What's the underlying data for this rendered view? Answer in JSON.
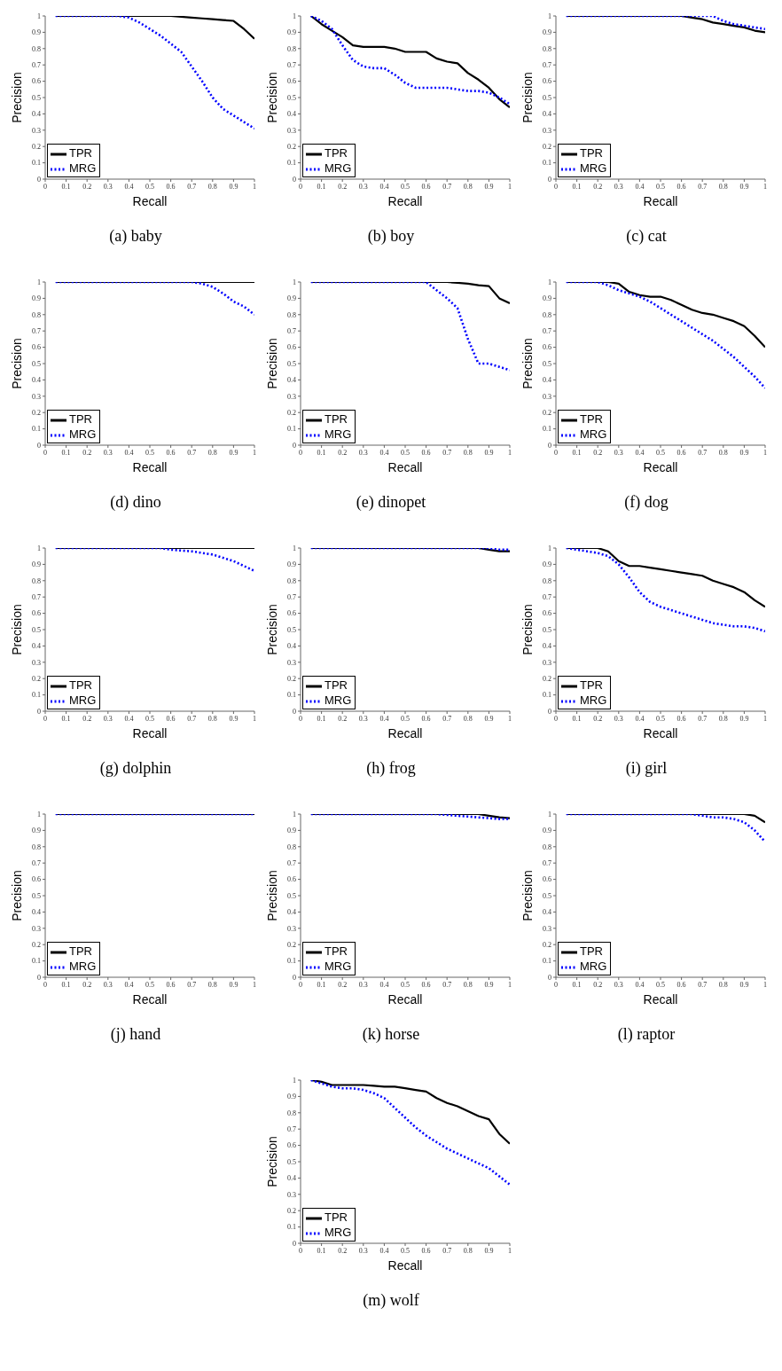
{
  "chart_data": [
    {
      "type": "line",
      "title": "(a) baby",
      "xlabel": "Recall",
      "ylabel": "Precision",
      "xlim": [
        0,
        1
      ],
      "ylim": [
        0,
        1
      ],
      "xticks": [
        0,
        0.1,
        0.2,
        0.3,
        0.4,
        0.5,
        0.6,
        0.7,
        0.8,
        0.9,
        1
      ],
      "yticks": [
        0,
        0.1,
        0.2,
        0.3,
        0.4,
        0.5,
        0.6,
        0.7,
        0.8,
        0.9,
        1
      ],
      "legend": "bottom left",
      "x": [
        0.05,
        0.1,
        0.15,
        0.2,
        0.25,
        0.3,
        0.35,
        0.4,
        0.45,
        0.5,
        0.55,
        0.6,
        0.65,
        0.7,
        0.75,
        0.8,
        0.85,
        0.9,
        0.95,
        1
      ],
      "series": [
        {
          "name": "TPR",
          "color": "#000000",
          "line_style": "solid",
          "values": [
            1,
            1,
            1,
            1,
            1,
            1,
            1,
            1,
            1,
            1,
            1,
            1,
            0.995,
            0.99,
            0.985,
            0.98,
            0.975,
            0.97,
            0.92,
            0.86
          ]
        },
        {
          "name": "MRG",
          "color": "#0000ff",
          "line_style": "dotted",
          "values": [
            1,
            1,
            1,
            1,
            1,
            1,
            1,
            0.99,
            0.96,
            0.92,
            0.88,
            0.83,
            0.78,
            0.69,
            0.6,
            0.5,
            0.43,
            0.39,
            0.35,
            0.31
          ]
        }
      ]
    },
    {
      "type": "line",
      "title": "(b) boy",
      "xlabel": "Recall",
      "ylabel": "Precision",
      "xlim": [
        0,
        1
      ],
      "ylim": [
        0,
        1
      ],
      "xticks": [
        0,
        0.1,
        0.2,
        0.3,
        0.4,
        0.5,
        0.6,
        0.7,
        0.8,
        0.9,
        1
      ],
      "yticks": [
        0,
        0.1,
        0.2,
        0.3,
        0.4,
        0.5,
        0.6,
        0.7,
        0.8,
        0.9,
        1
      ],
      "legend": "bottom left",
      "x": [
        0.05,
        0.1,
        0.15,
        0.2,
        0.25,
        0.3,
        0.35,
        0.4,
        0.45,
        0.5,
        0.55,
        0.6,
        0.65,
        0.7,
        0.75,
        0.8,
        0.85,
        0.9,
        0.95,
        1
      ],
      "series": [
        {
          "name": "TPR",
          "color": "#000000",
          "line_style": "solid",
          "values": [
            1,
            0.95,
            0.91,
            0.87,
            0.82,
            0.81,
            0.81,
            0.81,
            0.8,
            0.78,
            0.78,
            0.78,
            0.74,
            0.72,
            0.71,
            0.65,
            0.61,
            0.56,
            0.49,
            0.44
          ]
        },
        {
          "name": "MRG",
          "color": "#0000ff",
          "line_style": "dotted",
          "values": [
            1,
            0.97,
            0.92,
            0.82,
            0.73,
            0.69,
            0.68,
            0.68,
            0.64,
            0.59,
            0.56,
            0.56,
            0.56,
            0.56,
            0.55,
            0.54,
            0.54,
            0.53,
            0.5,
            0.46
          ]
        }
      ]
    },
    {
      "type": "line",
      "title": "(c) cat",
      "xlabel": "Recall",
      "ylabel": "Precision",
      "xlim": [
        0,
        1
      ],
      "ylim": [
        0,
        1
      ],
      "xticks": [
        0,
        0.1,
        0.2,
        0.3,
        0.4,
        0.5,
        0.6,
        0.7,
        0.8,
        0.9,
        1
      ],
      "yticks": [
        0,
        0.1,
        0.2,
        0.3,
        0.4,
        0.5,
        0.6,
        0.7,
        0.8,
        0.9,
        1
      ],
      "legend": "bottom left",
      "x": [
        0.05,
        0.1,
        0.15,
        0.2,
        0.25,
        0.3,
        0.35,
        0.4,
        0.45,
        0.5,
        0.55,
        0.6,
        0.65,
        0.7,
        0.75,
        0.8,
        0.85,
        0.9,
        0.95,
        1
      ],
      "series": [
        {
          "name": "TPR",
          "color": "#000000",
          "line_style": "solid",
          "values": [
            1,
            1,
            1,
            1,
            1,
            1,
            1,
            1,
            1,
            1,
            1,
            1,
            0.99,
            0.98,
            0.96,
            0.95,
            0.94,
            0.93,
            0.91,
            0.9
          ]
        },
        {
          "name": "MRG",
          "color": "#0000ff",
          "line_style": "dotted",
          "values": [
            1,
            1,
            1,
            1,
            1,
            1,
            1,
            1,
            1,
            1,
            1,
            1,
            1,
            1,
            1,
            0.97,
            0.95,
            0.94,
            0.93,
            0.92
          ]
        }
      ]
    },
    {
      "type": "line",
      "title": "(d) dino",
      "xlabel": "Recall",
      "ylabel": "Precision",
      "xlim": [
        0,
        1
      ],
      "ylim": [
        0,
        1
      ],
      "xticks": [
        0,
        0.1,
        0.2,
        0.3,
        0.4,
        0.5,
        0.6,
        0.7,
        0.8,
        0.9,
        1
      ],
      "yticks": [
        0,
        0.1,
        0.2,
        0.3,
        0.4,
        0.5,
        0.6,
        0.7,
        0.8,
        0.9,
        1
      ],
      "legend": "bottom left",
      "x": [
        0.05,
        0.1,
        0.15,
        0.2,
        0.25,
        0.3,
        0.35,
        0.4,
        0.45,
        0.5,
        0.55,
        0.6,
        0.65,
        0.7,
        0.75,
        0.8,
        0.85,
        0.9,
        0.95,
        1
      ],
      "series": [
        {
          "name": "TPR",
          "color": "#000000",
          "line_style": "solid",
          "values": [
            1,
            1,
            1,
            1,
            1,
            1,
            1,
            1,
            1,
            1,
            1,
            1,
            1,
            1,
            1,
            1,
            1,
            1,
            1,
            1
          ]
        },
        {
          "name": "MRG",
          "color": "#0000ff",
          "line_style": "dotted",
          "values": [
            1,
            1,
            1,
            1,
            1,
            1,
            1,
            1,
            1,
            1,
            1,
            1,
            1,
            1,
            0.99,
            0.97,
            0.93,
            0.88,
            0.85,
            0.8
          ]
        }
      ]
    },
    {
      "type": "line",
      "title": "(e) dinopet",
      "xlabel": "Recall",
      "ylabel": "Precision",
      "xlim": [
        0,
        1
      ],
      "ylim": [
        0,
        1
      ],
      "xticks": [
        0,
        0.1,
        0.2,
        0.3,
        0.4,
        0.5,
        0.6,
        0.7,
        0.8,
        0.9,
        1
      ],
      "yticks": [
        0,
        0.1,
        0.2,
        0.3,
        0.4,
        0.5,
        0.6,
        0.7,
        0.8,
        0.9,
        1
      ],
      "legend": "bottom left",
      "x": [
        0.05,
        0.1,
        0.15,
        0.2,
        0.25,
        0.3,
        0.35,
        0.4,
        0.45,
        0.5,
        0.55,
        0.6,
        0.65,
        0.7,
        0.75,
        0.8,
        0.85,
        0.9,
        0.95,
        1
      ],
      "series": [
        {
          "name": "TPR",
          "color": "#000000",
          "line_style": "solid",
          "values": [
            1,
            1,
            1,
            1,
            1,
            1,
            1,
            1,
            1,
            1,
            1,
            1,
            1,
            1,
            0.995,
            0.99,
            0.98,
            0.975,
            0.9,
            0.87
          ]
        },
        {
          "name": "MRG",
          "color": "#0000ff",
          "line_style": "dotted",
          "values": [
            1,
            1,
            1,
            1,
            1,
            1,
            1,
            1,
            1,
            1,
            1,
            1,
            0.95,
            0.9,
            0.84,
            0.65,
            0.5,
            0.5,
            0.48,
            0.46
          ]
        }
      ]
    },
    {
      "type": "line",
      "title": "(f) dog",
      "xlabel": "Recall",
      "ylabel": "Precision",
      "xlim": [
        0,
        1
      ],
      "ylim": [
        0,
        1
      ],
      "xticks": [
        0,
        0.1,
        0.2,
        0.3,
        0.4,
        0.5,
        0.6,
        0.7,
        0.8,
        0.9,
        1
      ],
      "yticks": [
        0,
        0.1,
        0.2,
        0.3,
        0.4,
        0.5,
        0.6,
        0.7,
        0.8,
        0.9,
        1
      ],
      "legend": "bottom left",
      "x": [
        0.05,
        0.1,
        0.15,
        0.2,
        0.25,
        0.3,
        0.35,
        0.4,
        0.45,
        0.5,
        0.55,
        0.6,
        0.65,
        0.7,
        0.75,
        0.8,
        0.85,
        0.9,
        0.95,
        1
      ],
      "series": [
        {
          "name": "TPR",
          "color": "#000000",
          "line_style": "solid",
          "values": [
            1,
            1,
            1,
            1,
            1,
            0.99,
            0.94,
            0.92,
            0.91,
            0.91,
            0.89,
            0.86,
            0.83,
            0.81,
            0.8,
            0.78,
            0.76,
            0.73,
            0.67,
            0.6
          ]
        },
        {
          "name": "MRG",
          "color": "#0000ff",
          "line_style": "dotted",
          "values": [
            1,
            1,
            1,
            1,
            0.98,
            0.95,
            0.93,
            0.91,
            0.88,
            0.84,
            0.8,
            0.76,
            0.72,
            0.68,
            0.64,
            0.59,
            0.54,
            0.48,
            0.42,
            0.35
          ]
        }
      ]
    },
    {
      "type": "line",
      "title": "(g) dolphin",
      "xlabel": "Recall",
      "ylabel": "Precision",
      "xlim": [
        0,
        1
      ],
      "ylim": [
        0,
        1
      ],
      "xticks": [
        0,
        0.1,
        0.2,
        0.3,
        0.4,
        0.5,
        0.6,
        0.7,
        0.8,
        0.9,
        1
      ],
      "yticks": [
        0,
        0.1,
        0.2,
        0.3,
        0.4,
        0.5,
        0.6,
        0.7,
        0.8,
        0.9,
        1
      ],
      "legend": "bottom left",
      "x": [
        0.05,
        0.1,
        0.15,
        0.2,
        0.25,
        0.3,
        0.35,
        0.4,
        0.45,
        0.5,
        0.55,
        0.6,
        0.65,
        0.7,
        0.75,
        0.8,
        0.85,
        0.9,
        0.95,
        1
      ],
      "series": [
        {
          "name": "TPR",
          "color": "#000000",
          "line_style": "solid",
          "values": [
            1,
            1,
            1,
            1,
            1,
            1,
            1,
            1,
            1,
            1,
            1,
            1,
            1,
            1,
            1,
            1,
            1,
            1,
            1,
            1
          ]
        },
        {
          "name": "MRG",
          "color": "#0000ff",
          "line_style": "dotted",
          "values": [
            1,
            1,
            1,
            1,
            1,
            1,
            1,
            1,
            1,
            1,
            1,
            0.99,
            0.985,
            0.98,
            0.97,
            0.96,
            0.94,
            0.92,
            0.89,
            0.86
          ]
        }
      ]
    },
    {
      "type": "line",
      "title": "(h) frog",
      "xlabel": "Recall",
      "ylabel": "Precision",
      "xlim": [
        0,
        1
      ],
      "ylim": [
        0,
        1
      ],
      "xticks": [
        0,
        0.1,
        0.2,
        0.3,
        0.4,
        0.5,
        0.6,
        0.7,
        0.8,
        0.9,
        1
      ],
      "yticks": [
        0,
        0.1,
        0.2,
        0.3,
        0.4,
        0.5,
        0.6,
        0.7,
        0.8,
        0.9,
        1
      ],
      "legend": "bottom left",
      "x": [
        0.05,
        0.1,
        0.15,
        0.2,
        0.25,
        0.3,
        0.35,
        0.4,
        0.45,
        0.5,
        0.55,
        0.6,
        0.65,
        0.7,
        0.75,
        0.8,
        0.85,
        0.9,
        0.95,
        1
      ],
      "series": [
        {
          "name": "TPR",
          "color": "#000000",
          "line_style": "solid",
          "values": [
            1,
            1,
            1,
            1,
            1,
            1,
            1,
            1,
            1,
            1,
            1,
            1,
            1,
            1,
            1,
            1,
            1,
            0.99,
            0.98,
            0.98
          ]
        },
        {
          "name": "MRG",
          "color": "#0000ff",
          "line_style": "dotted",
          "values": [
            1,
            1,
            1,
            1,
            1,
            1,
            1,
            1,
            1,
            1,
            1,
            1,
            1,
            1,
            1,
            1,
            1,
            1,
            0.99,
            0.99
          ]
        }
      ]
    },
    {
      "type": "line",
      "title": "(i) girl",
      "xlabel": "Recall",
      "ylabel": "Precision",
      "xlim": [
        0,
        1
      ],
      "ylim": [
        0,
        1
      ],
      "xticks": [
        0,
        0.1,
        0.2,
        0.3,
        0.4,
        0.5,
        0.6,
        0.7,
        0.8,
        0.9,
        1
      ],
      "yticks": [
        0,
        0.1,
        0.2,
        0.3,
        0.4,
        0.5,
        0.6,
        0.7,
        0.8,
        0.9,
        1
      ],
      "legend": "bottom left",
      "x": [
        0.05,
        0.1,
        0.15,
        0.2,
        0.25,
        0.3,
        0.35,
        0.4,
        0.45,
        0.5,
        0.55,
        0.6,
        0.65,
        0.7,
        0.75,
        0.8,
        0.85,
        0.9,
        0.95,
        1
      ],
      "series": [
        {
          "name": "TPR",
          "color": "#000000",
          "line_style": "solid",
          "values": [
            1,
            1,
            1,
            1,
            0.98,
            0.92,
            0.89,
            0.89,
            0.88,
            0.87,
            0.86,
            0.85,
            0.84,
            0.83,
            0.8,
            0.78,
            0.76,
            0.73,
            0.68,
            0.64
          ]
        },
        {
          "name": "MRG",
          "color": "#0000ff",
          "line_style": "dotted",
          "values": [
            1,
            0.99,
            0.98,
            0.97,
            0.95,
            0.9,
            0.82,
            0.73,
            0.67,
            0.64,
            0.62,
            0.6,
            0.58,
            0.56,
            0.54,
            0.53,
            0.52,
            0.52,
            0.51,
            0.49
          ]
        }
      ]
    },
    {
      "type": "line",
      "title": "(j) hand",
      "xlabel": "Recall",
      "ylabel": "Precision",
      "xlim": [
        0,
        1
      ],
      "ylim": [
        0,
        1
      ],
      "xticks": [
        0,
        0.1,
        0.2,
        0.3,
        0.4,
        0.5,
        0.6,
        0.7,
        0.8,
        0.9,
        1
      ],
      "yticks": [
        0,
        0.1,
        0.2,
        0.3,
        0.4,
        0.5,
        0.6,
        0.7,
        0.8,
        0.9,
        1
      ],
      "legend": "bottom left",
      "x": [
        0.05,
        0.1,
        0.15,
        0.2,
        0.25,
        0.3,
        0.35,
        0.4,
        0.45,
        0.5,
        0.55,
        0.6,
        0.65,
        0.7,
        0.75,
        0.8,
        0.85,
        0.9,
        0.95,
        1
      ],
      "series": [
        {
          "name": "TPR",
          "color": "#000000",
          "line_style": "solid",
          "values": [
            1,
            1,
            1,
            1,
            1,
            1,
            1,
            1,
            1,
            1,
            1,
            1,
            1,
            1,
            1,
            1,
            1,
            1,
            1,
            1
          ]
        },
        {
          "name": "MRG",
          "color": "#0000ff",
          "line_style": "dotted",
          "values": [
            1,
            1,
            1,
            1,
            1,
            1,
            1,
            1,
            1,
            1,
            1,
            1,
            1,
            1,
            1,
            1,
            1,
            1,
            1,
            1
          ]
        }
      ]
    },
    {
      "type": "line",
      "title": "(k) horse",
      "xlabel": "Recall",
      "ylabel": "Precision",
      "xlim": [
        0,
        1
      ],
      "ylim": [
        0,
        1
      ],
      "xticks": [
        0,
        0.1,
        0.2,
        0.3,
        0.4,
        0.5,
        0.6,
        0.7,
        0.8,
        0.9,
        1
      ],
      "yticks": [
        0,
        0.1,
        0.2,
        0.3,
        0.4,
        0.5,
        0.6,
        0.7,
        0.8,
        0.9,
        1
      ],
      "legend": "bottom left",
      "x": [
        0.05,
        0.1,
        0.15,
        0.2,
        0.25,
        0.3,
        0.35,
        0.4,
        0.45,
        0.5,
        0.55,
        0.6,
        0.65,
        0.7,
        0.75,
        0.8,
        0.85,
        0.9,
        0.95,
        1
      ],
      "series": [
        {
          "name": "TPR",
          "color": "#000000",
          "line_style": "solid",
          "values": [
            1,
            1,
            1,
            1,
            1,
            1,
            1,
            1,
            1,
            1,
            1,
            1,
            1,
            1,
            1,
            1,
            1,
            0.99,
            0.98,
            0.975
          ]
        },
        {
          "name": "MRG",
          "color": "#0000ff",
          "line_style": "dotted",
          "values": [
            1,
            1,
            1,
            1,
            1,
            1,
            1,
            1,
            1,
            1,
            1,
            1,
            1,
            0.995,
            0.99,
            0.985,
            0.98,
            0.975,
            0.97,
            0.97
          ]
        }
      ]
    },
    {
      "type": "line",
      "title": "(l) raptor",
      "xlabel": "Recall",
      "ylabel": "Precision",
      "xlim": [
        0,
        1
      ],
      "ylim": [
        0,
        1
      ],
      "xticks": [
        0,
        0.1,
        0.2,
        0.3,
        0.4,
        0.5,
        0.6,
        0.7,
        0.8,
        0.9,
        1
      ],
      "yticks": [
        0,
        0.1,
        0.2,
        0.3,
        0.4,
        0.5,
        0.6,
        0.7,
        0.8,
        0.9,
        1
      ],
      "legend": "bottom left",
      "x": [
        0.05,
        0.1,
        0.15,
        0.2,
        0.25,
        0.3,
        0.35,
        0.4,
        0.45,
        0.5,
        0.55,
        0.6,
        0.65,
        0.7,
        0.75,
        0.8,
        0.85,
        0.9,
        0.95,
        1
      ],
      "series": [
        {
          "name": "TPR",
          "color": "#000000",
          "line_style": "solid",
          "values": [
            1,
            1,
            1,
            1,
            1,
            1,
            1,
            1,
            1,
            1,
            1,
            1,
            1,
            1,
            1,
            1,
            1,
            1,
            0.99,
            0.95
          ]
        },
        {
          "name": "MRG",
          "color": "#0000ff",
          "line_style": "dotted",
          "values": [
            1,
            1,
            1,
            1,
            1,
            1,
            1,
            1,
            1,
            1,
            1,
            1,
            1,
            0.99,
            0.98,
            0.98,
            0.97,
            0.95,
            0.9,
            0.83
          ]
        }
      ]
    },
    {
      "type": "line",
      "title": "(m) wolf",
      "xlabel": "Recall",
      "ylabel": "Precision",
      "xlim": [
        0,
        1
      ],
      "ylim": [
        0,
        1
      ],
      "xticks": [
        0,
        0.1,
        0.2,
        0.3,
        0.4,
        0.5,
        0.6,
        0.7,
        0.8,
        0.9,
        1
      ],
      "yticks": [
        0,
        0.1,
        0.2,
        0.3,
        0.4,
        0.5,
        0.6,
        0.7,
        0.8,
        0.9,
        1
      ],
      "legend": "bottom left",
      "x": [
        0.05,
        0.1,
        0.15,
        0.2,
        0.25,
        0.3,
        0.35,
        0.4,
        0.45,
        0.5,
        0.55,
        0.6,
        0.65,
        0.7,
        0.75,
        0.8,
        0.85,
        0.9,
        0.95,
        1
      ],
      "series": [
        {
          "name": "TPR",
          "color": "#000000",
          "line_style": "solid",
          "values": [
            1,
            0.99,
            0.97,
            0.97,
            0.97,
            0.97,
            0.965,
            0.96,
            0.96,
            0.95,
            0.94,
            0.93,
            0.89,
            0.86,
            0.84,
            0.81,
            0.78,
            0.76,
            0.67,
            0.61
          ]
        },
        {
          "name": "MRG",
          "color": "#0000ff",
          "line_style": "dotted",
          "values": [
            1,
            0.98,
            0.96,
            0.95,
            0.95,
            0.94,
            0.92,
            0.89,
            0.83,
            0.77,
            0.71,
            0.66,
            0.62,
            0.58,
            0.55,
            0.52,
            0.49,
            0.46,
            0.41,
            0.36
          ]
        }
      ]
    }
  ]
}
